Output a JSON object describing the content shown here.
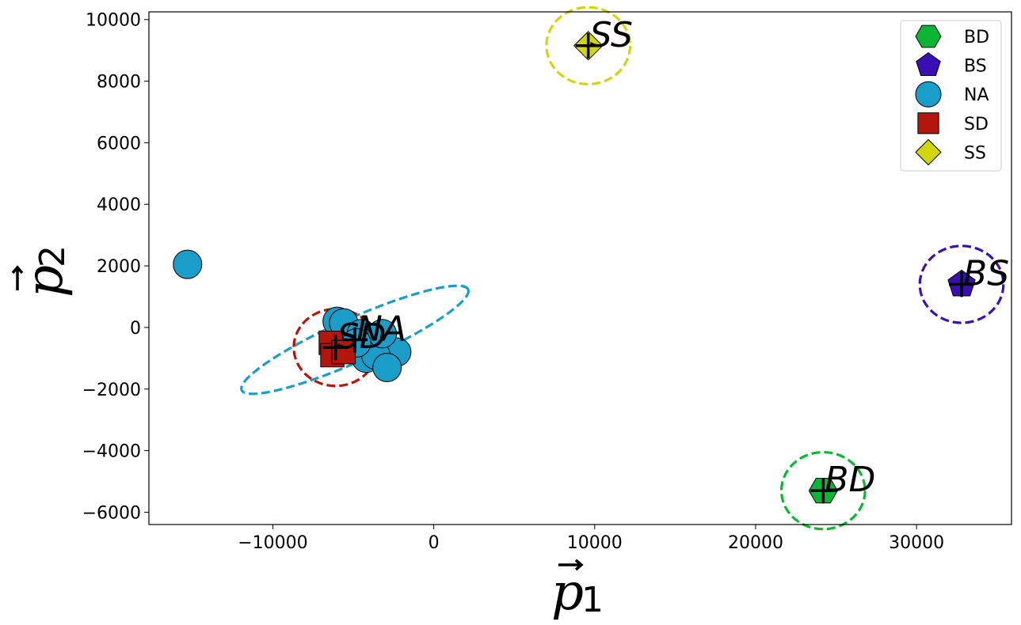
{
  "chart_data": {
    "type": "scatter",
    "title": "",
    "xlabel": {
      "base": "p",
      "sub": "1"
    },
    "ylabel": {
      "base": "p",
      "sub": "2"
    },
    "xlim": [
      -17700,
      35900
    ],
    "ylim": [
      -6400,
      10250
    ],
    "xticks": [
      -10000,
      0,
      10000,
      20000,
      30000
    ],
    "xtick_labels": [
      "−10000",
      "0",
      "10000",
      "20000",
      "30000"
    ],
    "yticks": [
      -6000,
      -4000,
      -2000,
      0,
      2000,
      4000,
      6000,
      8000,
      10000
    ],
    "ytick_labels": [
      "−6000",
      "−4000",
      "−2000",
      "0",
      "2000",
      "4000",
      "6000",
      "8000",
      "10000"
    ],
    "grid": false,
    "legend": {
      "position": "top-right"
    },
    "series": [
      {
        "name": "BD",
        "marker": "hexagon",
        "color": "#0db534",
        "points": [
          [
            24200,
            -5300
          ]
        ],
        "centroid": [
          24200,
          -5300
        ],
        "ellipse": {
          "rx": 2600,
          "ry": 1250,
          "angle": 0
        }
      },
      {
        "name": "BS",
        "marker": "pentagon",
        "color": "#3a10b6",
        "points": [
          [
            32800,
            1400
          ]
        ],
        "centroid": [
          32800,
          1400
        ],
        "ellipse": {
          "rx": 2600,
          "ry": 1250,
          "angle": 0
        }
      },
      {
        "name": "NA",
        "marker": "circle",
        "color": "#1a9ec9",
        "points": [
          [
            -15300,
            2050
          ],
          [
            -6000,
            200
          ],
          [
            -5600,
            150
          ],
          [
            -4500,
            -200
          ],
          [
            -3500,
            -400
          ],
          [
            -2300,
            -800
          ],
          [
            -5100,
            -700
          ],
          [
            -4200,
            -1000
          ],
          [
            -3600,
            -900
          ],
          [
            -2900,
            -1300
          ],
          [
            -3200,
            -200
          ],
          [
            -4800,
            -500
          ]
        ],
        "centroid": [
          -4900,
          -400
        ],
        "ellipse": {
          "rx": 7700,
          "ry": 700,
          "angle": -24
        }
      },
      {
        "name": "SD",
        "marker": "square",
        "color": "#b5160c",
        "points": [
          [
            -6400,
            -500
          ],
          [
            -6300,
            -900
          ],
          [
            -5600,
            -800
          ]
        ],
        "centroid": [
          -6100,
          -650
        ],
        "ellipse": {
          "rx": 2600,
          "ry": 1250,
          "angle": 0
        }
      },
      {
        "name": "SS",
        "marker": "diamond",
        "color": "#d1d60c",
        "points": [
          [
            9600,
            9150
          ]
        ],
        "centroid": [
          9600,
          9150
        ],
        "ellipse": {
          "rx": 2600,
          "ry": 1250,
          "angle": 0
        }
      }
    ],
    "cluster_labels": [
      {
        "text": "BD",
        "series": "BD"
      },
      {
        "text": "BS",
        "series": "BS"
      },
      {
        "text": "NA",
        "series": "NA"
      },
      {
        "text": "SD",
        "series": "SD"
      },
      {
        "text": "SS",
        "series": "SS"
      }
    ]
  }
}
